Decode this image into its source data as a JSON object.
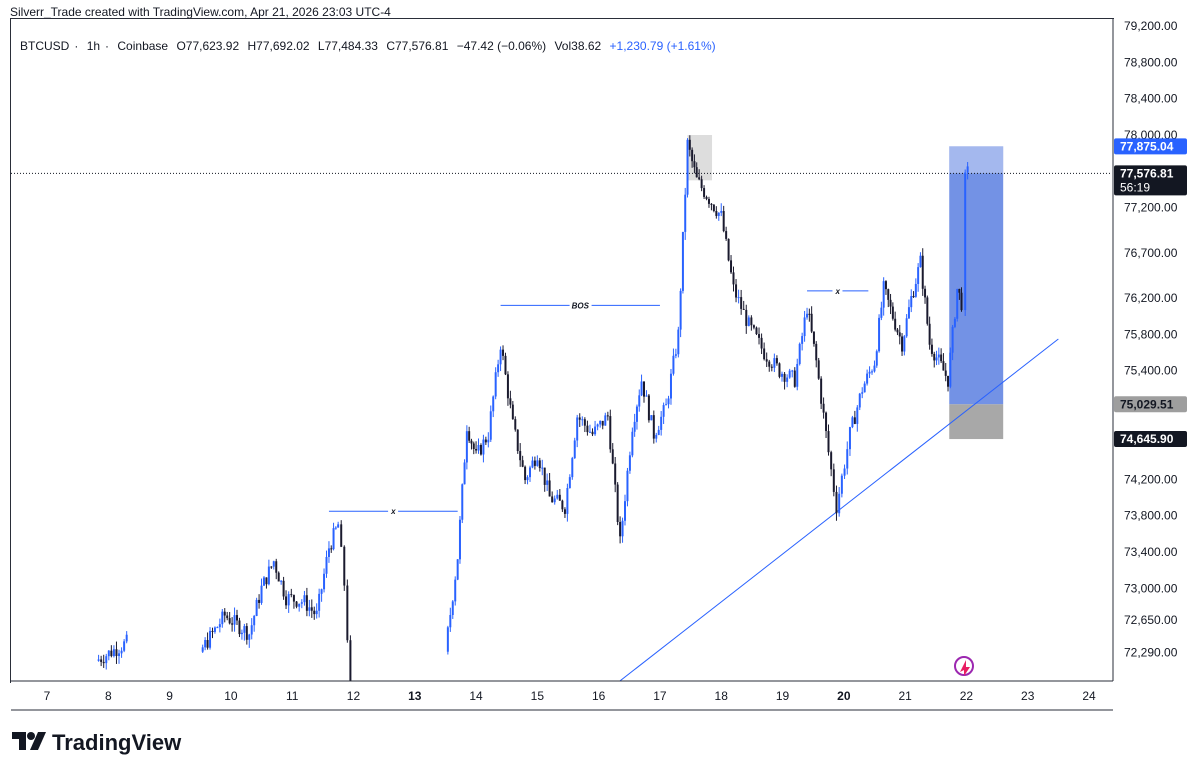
{
  "header": {
    "attribution": "Silverr_Trade created with TradingView.com, Apr 21, 2026 23:03 UTC-4"
  },
  "legend": {
    "symbol": "BTCUSD",
    "interval": "1h",
    "exchange": "Coinbase",
    "open": "O77,623.92",
    "high": "H77,692.02",
    "low": "L77,484.33",
    "close": "C77,576.81",
    "change": "−47.42 (−0.06%)",
    "volume": "Vol38.62",
    "volume_change": "+1,230.79 (+1.61%)"
  },
  "colors": {
    "accent": "#2962ff",
    "candle": "#1a1a2e",
    "candle_up": "#2962ff",
    "position_profit": "#5b7fe0",
    "position_loss": "#9e9e9e"
  },
  "footer": {
    "logo_text": "TradingView",
    "icon": "tradingview-logo-icon"
  },
  "annotations": {
    "bos": "BOS",
    "x1": "x",
    "x2": "x"
  },
  "price_tags": {
    "target": "77,875.04",
    "last": "77,576.81",
    "countdown": "56:19",
    "entry": "75,029.51",
    "stop": "74,645.90"
  },
  "chart_data": {
    "type": "candlestick",
    "title": "",
    "xlabel": "",
    "ylabel": "",
    "y_axis_ticks": [
      79200,
      78800,
      78400,
      78000,
      77200,
      76700,
      76200,
      75800,
      75400,
      74200,
      73800,
      73400,
      73000,
      72650,
      72290
    ],
    "y_axis_labels": [
      "79,200.00",
      "78,800.00",
      "78,400.00",
      "78,000.00",
      "77,200.00",
      "76,700.00",
      "76,200.00",
      "75,800.00",
      "75,400.00",
      "74,200.00",
      "73,800.00",
      "73,400.00",
      "73,000.00",
      "72,650.00",
      "72,290.00"
    ],
    "x_axis_labels": [
      "7",
      "8",
      "9",
      "10",
      "11",
      "12",
      "13",
      "14",
      "15",
      "16",
      "17",
      "18",
      "19",
      "20",
      "21",
      "22",
      "23",
      "24"
    ],
    "x_axis_bold": [
      "13",
      "20"
    ],
    "ylim": [
      72000,
      79400
    ],
    "last_price": 77576.81,
    "long_position": {
      "target": 77875.04,
      "entry": 75029.51,
      "stop": 74645.9
    },
    "structure_levels": [
      {
        "label": "x",
        "price": 73850,
        "from_day": 11.6,
        "to_day": 13.7
      },
      {
        "label": "BOS",
        "price": 76120,
        "from_day": 14.4,
        "to_day": 17.0
      },
      {
        "label": "x",
        "price": 76280,
        "from_day": 19.4,
        "to_day": 20.4
      }
    ],
    "trendline": {
      "from": {
        "day": 16.2,
        "price": 71900
      },
      "to": {
        "day": 23.5,
        "price": 75750
      }
    },
    "path_points": [
      {
        "day": 7.8,
        "price": 72200
      },
      {
        "day": 8.3,
        "price": 72400
      },
      {
        "day": 9.5,
        "price": 72300
      },
      {
        "day": 9.9,
        "price": 72700
      },
      {
        "day": 10.3,
        "price": 72500
      },
      {
        "day": 10.5,
        "price": 73000
      },
      {
        "day": 10.7,
        "price": 73300
      },
      {
        "day": 10.9,
        "price": 72900
      },
      {
        "day": 11.2,
        "price": 72850
      },
      {
        "day": 11.4,
        "price": 72700
      },
      {
        "day": 11.6,
        "price": 73450
      },
      {
        "day": 11.75,
        "price": 73700
      },
      {
        "day": 11.85,
        "price": 73050
      },
      {
        "day": 11.95,
        "price": 71900
      },
      {
        "day": 13.5,
        "price": 72300
      },
      {
        "day": 13.7,
        "price": 73350
      },
      {
        "day": 13.85,
        "price": 74800
      },
      {
        "day": 14.0,
        "price": 74450
      },
      {
        "day": 14.2,
        "price": 74700
      },
      {
        "day": 14.4,
        "price": 75700
      },
      {
        "day": 14.6,
        "price": 74800
      },
      {
        "day": 14.8,
        "price": 74200
      },
      {
        "day": 15.0,
        "price": 74500
      },
      {
        "day": 15.2,
        "price": 74000
      },
      {
        "day": 15.45,
        "price": 73900
      },
      {
        "day": 15.65,
        "price": 74900
      },
      {
        "day": 15.9,
        "price": 74700
      },
      {
        "day": 16.15,
        "price": 74900
      },
      {
        "day": 16.35,
        "price": 73500
      },
      {
        "day": 16.55,
        "price": 74800
      },
      {
        "day": 16.7,
        "price": 75300
      },
      {
        "day": 16.9,
        "price": 74700
      },
      {
        "day": 17.1,
        "price": 75000
      },
      {
        "day": 17.3,
        "price": 75800
      },
      {
        "day": 17.45,
        "price": 77900
      },
      {
        "day": 17.6,
        "price": 77500
      },
      {
        "day": 17.8,
        "price": 77300
      },
      {
        "day": 18.0,
        "price": 77100
      },
      {
        "day": 18.2,
        "price": 76300
      },
      {
        "day": 18.45,
        "price": 75900
      },
      {
        "day": 18.7,
        "price": 75600
      },
      {
        "day": 18.95,
        "price": 75400
      },
      {
        "day": 19.2,
        "price": 75300
      },
      {
        "day": 19.4,
        "price": 76100
      },
      {
        "day": 19.55,
        "price": 75500
      },
      {
        "day": 19.75,
        "price": 74500
      },
      {
        "day": 19.88,
        "price": 73900
      },
      {
        "day": 20.1,
        "price": 74700
      },
      {
        "day": 20.3,
        "price": 75200
      },
      {
        "day": 20.5,
        "price": 75500
      },
      {
        "day": 20.65,
        "price": 76300
      },
      {
        "day": 20.8,
        "price": 76000
      },
      {
        "day": 20.95,
        "price": 75700
      },
      {
        "day": 21.1,
        "price": 76200
      },
      {
        "day": 21.25,
        "price": 76600
      },
      {
        "day": 21.4,
        "price": 75700
      },
      {
        "day": 21.55,
        "price": 75500
      },
      {
        "day": 21.7,
        "price": 75300
      },
      {
        "day": 21.85,
        "price": 76300
      },
      {
        "day": 21.92,
        "price": 76150
      },
      {
        "day": 21.98,
        "price": 77500
      },
      {
        "day": 22.02,
        "price": 77580
      }
    ]
  }
}
